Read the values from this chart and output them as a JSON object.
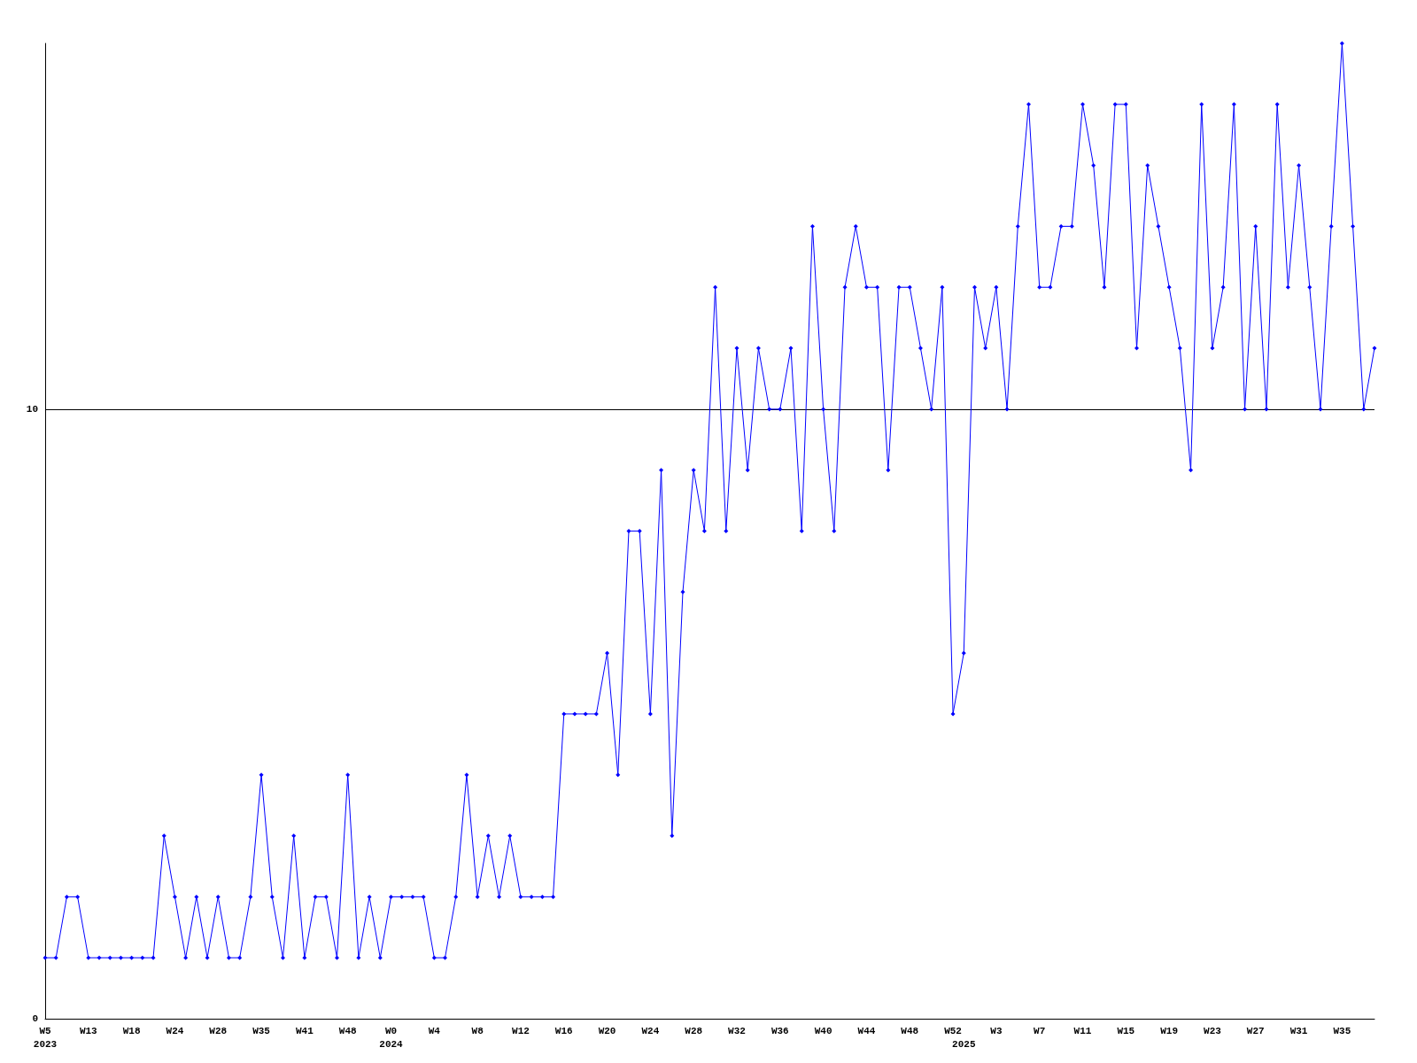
{
  "chart_data": {
    "type": "line",
    "categories": [
      "W5\n2023",
      null,
      null,
      null,
      "W13",
      null,
      null,
      null,
      "W18",
      null,
      null,
      null,
      "W24",
      null,
      null,
      null,
      "W28",
      null,
      null,
      null,
      "W35",
      null,
      null,
      null,
      "W41",
      null,
      null,
      null,
      "W48",
      null,
      null,
      null,
      "W0\n2024",
      null,
      null,
      null,
      "W4",
      null,
      null,
      null,
      "W8",
      null,
      null,
      null,
      "W12",
      null,
      null,
      null,
      "W16",
      null,
      null,
      null,
      "W20",
      null,
      null,
      null,
      "W24",
      null,
      null,
      null,
      "W28",
      null,
      null,
      null,
      "W32",
      null,
      null,
      null,
      "W36",
      null,
      null,
      null,
      "W40",
      null,
      null,
      null,
      "W44",
      null,
      null,
      null,
      "W48",
      null,
      null,
      null,
      "W52",
      "\n2025",
      null,
      null,
      "W3",
      null,
      null,
      null,
      "W7",
      null,
      null,
      null,
      "W11",
      null,
      null,
      null,
      "W15",
      null,
      null,
      null,
      "W19",
      null,
      null,
      null,
      "W23",
      null,
      null,
      null,
      "W27",
      null,
      null,
      null,
      "W31",
      null,
      null,
      null,
      "W35",
      null,
      null,
      null
    ],
    "series": [
      {
        "color": "#0000ff",
        "values": [
          1,
          1,
          2,
          2,
          1,
          1,
          1,
          1,
          1,
          1,
          1,
          3,
          2,
          1,
          2,
          1,
          2,
          1,
          1,
          2,
          4,
          2,
          1,
          3,
          1,
          2,
          2,
          1,
          4,
          1,
          2,
          1,
          2,
          2,
          2,
          2,
          1,
          1,
          2,
          4,
          2,
          3,
          2,
          3,
          2,
          2,
          2,
          2,
          5,
          5,
          5,
          5,
          6,
          4,
          8,
          8,
          5,
          9,
          3,
          7,
          9,
          8,
          12,
          8,
          11,
          9,
          11,
          10,
          10,
          11,
          8,
          13,
          10,
          8,
          12,
          13,
          12,
          12,
          9,
          12,
          12,
          11,
          10,
          12,
          5,
          6,
          12,
          11,
          12,
          10,
          13,
          15,
          12,
          12,
          13,
          13,
          15,
          14,
          12,
          15,
          15,
          11,
          14,
          13,
          12,
          11,
          9,
          15,
          11,
          12,
          15,
          10,
          13,
          10,
          15,
          12,
          14,
          12,
          10,
          13,
          16,
          13,
          10,
          11
        ]
      }
    ],
    "ylim": [
      0,
      16
    ],
    "yticks": [
      0,
      10
    ],
    "grid": "y",
    "marker": "diamond",
    "line_style": "solid"
  }
}
